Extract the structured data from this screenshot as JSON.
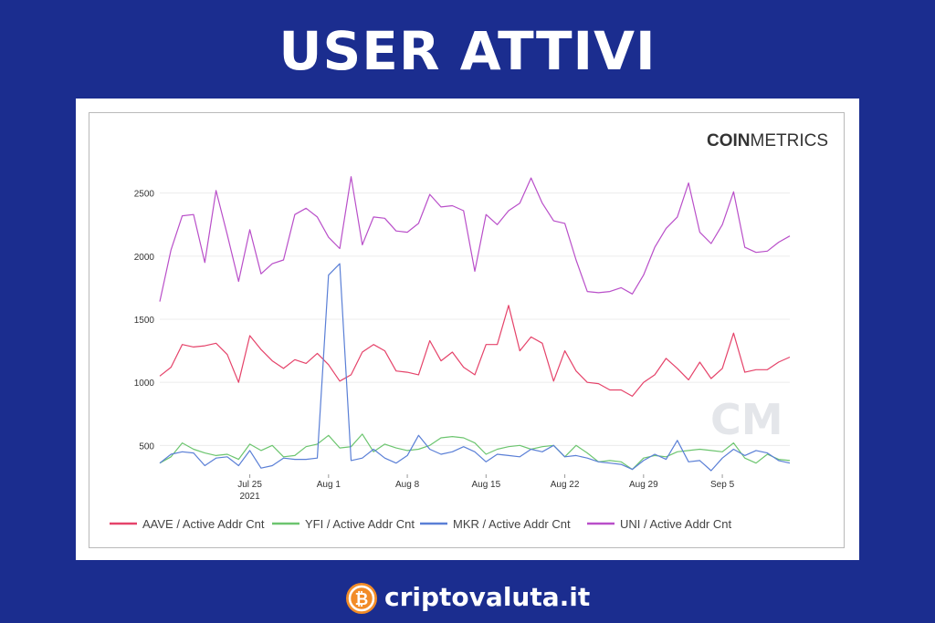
{
  "header": {
    "title": "USER ATTIVI"
  },
  "brand": {
    "chart_brand_bold": "COIN",
    "chart_brand_light": "METRICS",
    "site_name": "criptovaluta.it"
  },
  "colors": {
    "background": "#1b2d8f",
    "aave": "#e5436a",
    "yfi": "#6cc56f",
    "mkr": "#5a7fd6",
    "uni": "#b94fc9",
    "coin": "#f28c28"
  },
  "chart_data": {
    "type": "line",
    "title": "",
    "xlabel": "",
    "ylabel": "",
    "x": [
      "2021-07-17",
      "2021-07-18",
      "2021-07-19",
      "2021-07-20",
      "2021-07-21",
      "2021-07-22",
      "2021-07-23",
      "2021-07-24",
      "2021-07-25",
      "2021-07-26",
      "2021-07-27",
      "2021-07-28",
      "2021-07-29",
      "2021-07-30",
      "2021-07-31",
      "2021-08-01",
      "2021-08-02",
      "2021-08-03",
      "2021-08-04",
      "2021-08-05",
      "2021-08-06",
      "2021-08-07",
      "2021-08-08",
      "2021-08-09",
      "2021-08-10",
      "2021-08-11",
      "2021-08-12",
      "2021-08-13",
      "2021-08-14",
      "2021-08-15",
      "2021-08-16",
      "2021-08-17",
      "2021-08-18",
      "2021-08-19",
      "2021-08-20",
      "2021-08-21",
      "2021-08-22",
      "2021-08-23",
      "2021-08-24",
      "2021-08-25",
      "2021-08-26",
      "2021-08-27",
      "2021-08-28",
      "2021-08-29",
      "2021-08-30",
      "2021-08-31",
      "2021-09-01",
      "2021-09-02",
      "2021-09-03",
      "2021-09-04",
      "2021-09-05",
      "2021-09-06",
      "2021-09-07",
      "2021-09-08",
      "2021-09-09",
      "2021-09-10",
      "2021-09-11"
    ],
    "x_ticks": [
      {
        "x": "2021-07-25",
        "label": "Jul 25",
        "sublabel": "2021"
      },
      {
        "x": "2021-08-01",
        "label": "Aug 1",
        "sublabel": ""
      },
      {
        "x": "2021-08-08",
        "label": "Aug 8",
        "sublabel": ""
      },
      {
        "x": "2021-08-15",
        "label": "Aug 15",
        "sublabel": ""
      },
      {
        "x": "2021-08-22",
        "label": "Aug 22",
        "sublabel": ""
      },
      {
        "x": "2021-08-29",
        "label": "Aug 29",
        "sublabel": ""
      },
      {
        "x": "2021-09-05",
        "label": "Sep 5",
        "sublabel": ""
      }
    ],
    "y_ticks": [
      500,
      1000,
      1500,
      2000,
      2500
    ],
    "ylim": [
      300,
      2700
    ],
    "grid": true,
    "legend_position": "bottom",
    "series": [
      {
        "name": "AAVE / Active Addr Cnt",
        "color": "#e5436a",
        "values": [
          1050,
          1120,
          1300,
          1280,
          1290,
          1310,
          1220,
          1000,
          1370,
          1260,
          1170,
          1110,
          1180,
          1150,
          1230,
          1140,
          1010,
          1060,
          1240,
          1300,
          1250,
          1090,
          1080,
          1060,
          1330,
          1170,
          1240,
          1120,
          1060,
          1300,
          1300,
          1610,
          1250,
          1360,
          1310,
          1010,
          1250,
          1090,
          1000,
          990,
          940,
          940,
          890,
          1000,
          1060,
          1190,
          1110,
          1020,
          1160,
          1030,
          1110,
          1390,
          1080,
          1100,
          1100,
          1160,
          1200
        ]
      },
      {
        "name": "YFI / Active Addr Cnt",
        "color": "#6cc56f",
        "values": [
          360,
          410,
          520,
          470,
          440,
          420,
          430,
          390,
          510,
          460,
          500,
          410,
          420,
          490,
          510,
          580,
          480,
          490,
          590,
          450,
          510,
          480,
          460,
          470,
          500,
          560,
          570,
          560,
          520,
          430,
          470,
          490,
          500,
          470,
          490,
          500,
          410,
          500,
          440,
          370,
          380,
          370,
          310,
          400,
          420,
          410,
          450,
          460,
          470,
          460,
          450,
          520,
          400,
          360,
          430,
          390,
          380
        ]
      },
      {
        "name": "MKR / Active Addr Cnt",
        "color": "#5a7fd6",
        "values": [
          360,
          430,
          450,
          440,
          340,
          400,
          410,
          340,
          460,
          320,
          340,
          400,
          390,
          390,
          400,
          1850,
          1940,
          380,
          400,
          470,
          400,
          360,
          420,
          580,
          470,
          430,
          450,
          490,
          450,
          370,
          430,
          420,
          410,
          470,
          450,
          500,
          410,
          420,
          400,
          370,
          360,
          350,
          310,
          380,
          430,
          390,
          540,
          370,
          380,
          300,
          400,
          470,
          420,
          460,
          440,
          380,
          360
        ]
      },
      {
        "name": "UNI / Active Addr Cnt",
        "color": "#b94fc9",
        "values": [
          1640,
          2050,
          2320,
          2330,
          1950,
          2520,
          2170,
          1800,
          2210,
          1860,
          1940,
          1970,
          2330,
          2380,
          2310,
          2150,
          2060,
          2630,
          2090,
          2310,
          2300,
          2200,
          2190,
          2260,
          2490,
          2390,
          2400,
          2360,
          1880,
          2330,
          2250,
          2360,
          2420,
          2620,
          2420,
          2280,
          2260,
          1970,
          1720,
          1710,
          1720,
          1750,
          1700,
          1850,
          2070,
          2220,
          2310,
          2580,
          2190,
          2100,
          2250,
          2510,
          2070,
          2030,
          2040,
          2110,
          2160
        ]
      }
    ]
  }
}
